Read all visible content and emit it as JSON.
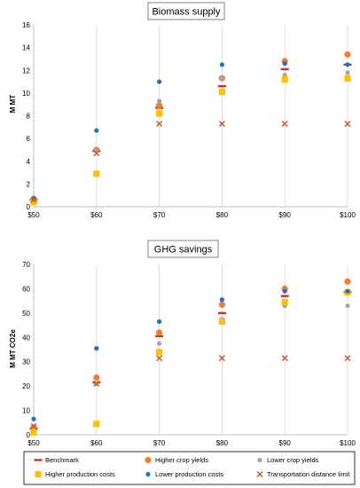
{
  "chart_data": [
    {
      "type": "scatter",
      "title": "Biomass supply",
      "ylabel": "M MT",
      "categories": [
        "$50",
        "$60",
        "$70",
        "$80",
        "$90",
        "$100"
      ],
      "ylim": [
        0,
        16
      ],
      "yticks": [
        0,
        2,
        4,
        6,
        8,
        10,
        12,
        14,
        16
      ],
      "grid": "vertical",
      "series": [
        {
          "name": "Benchmark",
          "marker": "dash",
          "color": "#e0262c",
          "values": [
            0.6,
            4.9,
            8.7,
            10.6,
            12.1,
            12.5
          ]
        },
        {
          "name": "Higher crop yields",
          "marker": "circle",
          "color": "#ed7d31",
          "values": [
            0.7,
            5.0,
            8.9,
            11.3,
            12.8,
            13.4
          ]
        },
        {
          "name": "Lower crop yields",
          "marker": "circle-small",
          "color": "#a5a5a5",
          "values": [
            0.6,
            4.9,
            9.3,
            11.3,
            11.6,
            11.8
          ]
        },
        {
          "name": "Higher production costs",
          "marker": "square",
          "color": "#ffc000",
          "values": [
            0.4,
            2.9,
            8.2,
            10.1,
            11.2,
            11.3
          ]
        },
        {
          "name": "Lower production costs",
          "marker": "circle-small",
          "color": "#1f70c1",
          "values": [
            0.7,
            6.7,
            11.0,
            12.5,
            12.6,
            12.5
          ]
        },
        {
          "name": "Transportation distance limit",
          "marker": "x",
          "color": "#c65b2a",
          "values": [
            0.6,
            4.7,
            7.3,
            7.3,
            7.3,
            7.3
          ]
        }
      ]
    },
    {
      "type": "scatter",
      "title": "GHG savings",
      "ylabel": "M MT CO2e",
      "categories": [
        "$50",
        "$60",
        "$70",
        "$80",
        "$90",
        "$100"
      ],
      "ylim": [
        0,
        70
      ],
      "yticks": [
        0,
        10,
        20,
        30,
        40,
        50,
        60,
        70
      ],
      "grid": "vertical",
      "series": [
        {
          "name": "Benchmark",
          "marker": "dash",
          "color": "#e0262c",
          "values": [
            2.5,
            21.5,
            40.5,
            50.0,
            57.0,
            58.5
          ]
        },
        {
          "name": "Higher crop yields",
          "marker": "circle",
          "color": "#ed7d31",
          "values": [
            3.0,
            23.5,
            42.0,
            53.5,
            60.0,
            63.0
          ]
        },
        {
          "name": "Lower crop yields",
          "marker": "circle-small",
          "color": "#a5a5a5",
          "values": [
            2.5,
            21.0,
            37.5,
            47.5,
            53.0,
            53.0
          ]
        },
        {
          "name": "Higher production costs",
          "marker": "square",
          "color": "#ffc000",
          "values": [
            1.0,
            4.5,
            34.0,
            46.5,
            54.5,
            58.5
          ]
        },
        {
          "name": "Lower production costs",
          "marker": "circle-small",
          "color": "#1f70c1",
          "values": [
            6.5,
            35.5,
            46.5,
            55.5,
            59.0,
            59.0
          ]
        },
        {
          "name": "Transportation distance limit",
          "marker": "x",
          "color": "#c65b2a",
          "values": [
            3.5,
            21.0,
            31.5,
            31.5,
            31.5,
            31.5
          ]
        }
      ]
    }
  ],
  "legend": {
    "placement": "bottom",
    "items": [
      "Benchmark",
      "Higher crop yields",
      "Lower crop yields",
      "Higher production costs",
      "Lower production costs",
      "Transportation distance limit"
    ]
  }
}
